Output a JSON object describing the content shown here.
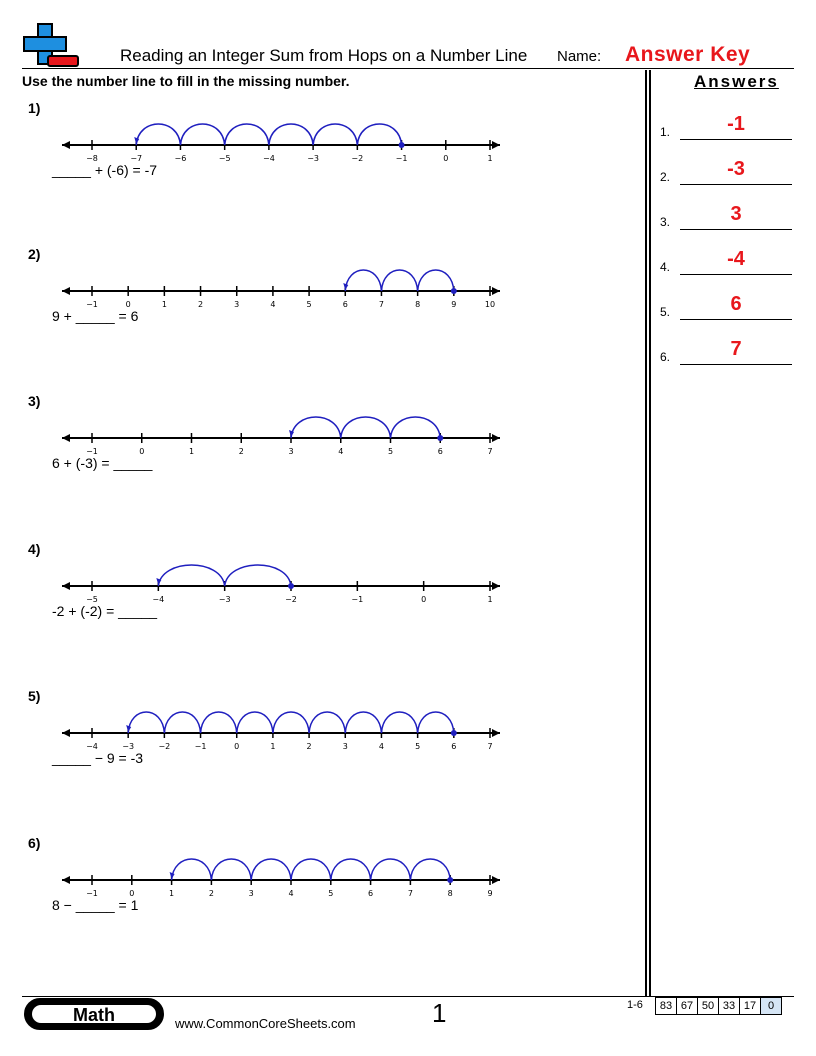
{
  "header": {
    "title": "Reading an Integer Sum from Hops on a Number Line",
    "name_label": "Name:",
    "answer_key": "Answer Key",
    "instructions": "Use the number line to fill in the missing number."
  },
  "answers": {
    "heading": "Answers",
    "items": [
      {
        "num": "1.",
        "value": "-1"
      },
      {
        "num": "2.",
        "value": "-3"
      },
      {
        "num": "3.",
        "value": "3"
      },
      {
        "num": "4.",
        "value": "-4"
      },
      {
        "num": "5.",
        "value": "6"
      },
      {
        "num": "6.",
        "value": "7"
      }
    ]
  },
  "problems": [
    {
      "label": "1)",
      "equation": "_____ + (-6) = -7",
      "min": -8,
      "max": 1,
      "start": -1,
      "end": -7,
      "ticks": [
        "−8",
        "−7",
        "−6",
        "−5",
        "−4",
        "−3",
        "−2",
        "−1",
        "0",
        "1"
      ]
    },
    {
      "label": "2)",
      "equation": "9 + _____ = 6",
      "min": -1,
      "max": 10,
      "start": 9,
      "end": 6,
      "ticks": [
        "−1",
        "0",
        "1",
        "2",
        "3",
        "4",
        "5",
        "6",
        "7",
        "8",
        "9",
        "10"
      ]
    },
    {
      "label": "3)",
      "equation": "6 + (-3) = _____",
      "min": -1,
      "max": 7,
      "start": 6,
      "end": 3,
      "ticks": [
        "−1",
        "0",
        "1",
        "2",
        "3",
        "4",
        "5",
        "6",
        "7"
      ]
    },
    {
      "label": "4)",
      "equation": "-2 + (-2) = _____",
      "min": -5,
      "max": 1,
      "start": -2,
      "end": -4,
      "ticks": [
        "−5",
        "−4",
        "−3",
        "−2",
        "−1",
        "0",
        "1"
      ]
    },
    {
      "label": "5)",
      "equation": "_____ − 9 = -3",
      "min": -4,
      "max": 7,
      "start": 6,
      "end": -3,
      "ticks": [
        "−4",
        "−3",
        "−2",
        "−1",
        "0",
        "1",
        "2",
        "3",
        "4",
        "5",
        "6",
        "7"
      ]
    },
    {
      "label": "6)",
      "equation": "8 − _____ = 1",
      "min": -1,
      "max": 9,
      "start": 8,
      "end": 1,
      "ticks": [
        "−1",
        "0",
        "1",
        "2",
        "3",
        "4",
        "5",
        "6",
        "7",
        "8",
        "9"
      ]
    }
  ],
  "footer": {
    "subject": "Math",
    "site": "www.CommonCoreSheets.com",
    "page": "1",
    "range": "1-6",
    "scores": [
      "83",
      "67",
      "50",
      "33",
      "17",
      "0"
    ]
  },
  "colors": {
    "hop": "#1f1fbf",
    "answer": "#e8171c",
    "logo_blue": "#1e8fe0",
    "logo_red": "#e8171c"
  }
}
